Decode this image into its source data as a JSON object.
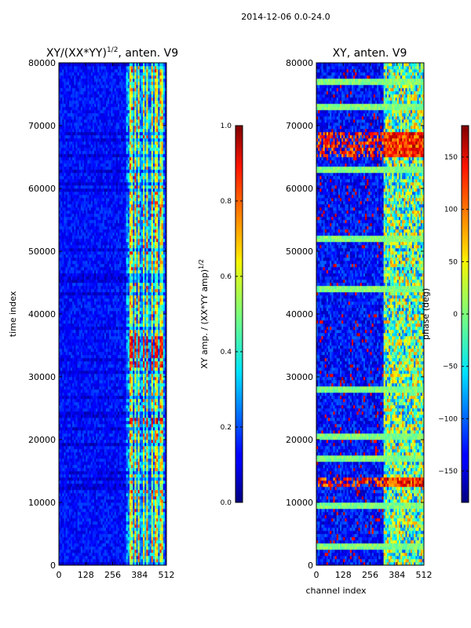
{
  "figure": {
    "suptitle": "2014-12-06 0.0-24.0"
  },
  "chart_data": [
    {
      "type": "heatmap",
      "title": "XY/(XX*YY)",
      "title_exponent": "1/2",
      "title_suffix": ", anten. V9",
      "ylabel": "time index",
      "xlabel": "",
      "xlim": [
        0,
        512
      ],
      "ylim": [
        0,
        80000
      ],
      "xticks": [
        "0",
        "128",
        "256",
        "384",
        "512"
      ],
      "yticks": [
        "0",
        "10000",
        "20000",
        "30000",
        "40000",
        "50000",
        "60000",
        "70000",
        "80000"
      ],
      "colormap": "jet",
      "colorbar": {
        "label": "XY amp. / (XX*YY amp)",
        "label_exponent": "1/2",
        "range": [
          0.0,
          1.0
        ],
        "ticks": [
          "0.0",
          "0.2",
          "0.4",
          "0.6",
          "0.8",
          "1.0"
        ]
      },
      "features": {
        "background_value": 0.1,
        "active_channels": [
          320,
          500
        ],
        "bright_stripes_channels": [
          345,
          365,
          380,
          405,
          420,
          445,
          465,
          490
        ],
        "high_value_time_bands": [
          [
            11500,
            13000
          ],
          [
            22500,
            24000
          ],
          [
            31500,
            36500
          ]
        ]
      }
    },
    {
      "type": "heatmap",
      "title": "XY, anten. V9",
      "ylabel": "",
      "xlabel": "channel index",
      "xlim": [
        0,
        512
      ],
      "ylim": [
        0,
        80000
      ],
      "xticks": [
        "0",
        "128",
        "256",
        "384",
        "512"
      ],
      "yticks": [
        "0",
        "10000",
        "20000",
        "30000",
        "40000",
        "50000",
        "60000",
        "70000",
        "80000"
      ],
      "colormap": "jet",
      "colorbar": {
        "label": "phase (deg)",
        "range": [
          -180,
          180
        ],
        "ticks": [
          "−150",
          "−100",
          "−50",
          "0",
          "50",
          "100",
          "150"
        ]
      },
      "features": {
        "background_value": -170,
        "active_channels": [
          320,
          512
        ],
        "high_value_time_bands": [
          [
            12500,
            14000
          ],
          [
            65000,
            69000
          ]
        ],
        "cyan_streak_times": [
          3000,
          9500,
          17000,
          20500,
          28000,
          44000,
          52000,
          63000,
          73000,
          77000
        ]
      }
    }
  ]
}
